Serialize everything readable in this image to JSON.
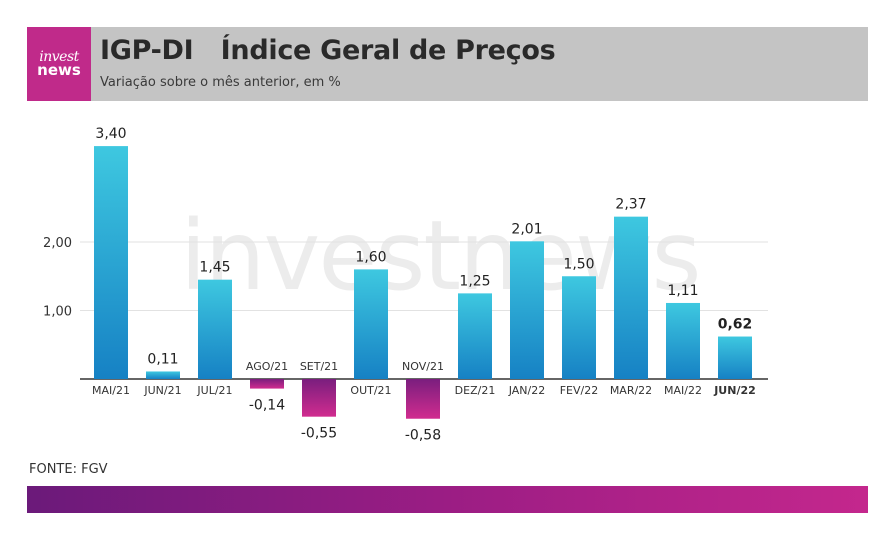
{
  "header": {
    "logo": {
      "line1": "invest",
      "line2": "news"
    },
    "title": "IGP-DI   Índice Geral de Preços",
    "subtitle": "Variação sobre o mês anterior, em %"
  },
  "watermark": "investnews",
  "source": "FONTE: FGV",
  "colors": {
    "header_bg": "#c4c4c4",
    "logo_bg": "#c02a8a",
    "positive_top": "#3ec8e0",
    "positive_bottom": "#1681c4",
    "negative_top": "#7a1e7e",
    "negative_bottom": "#d12c8f",
    "footer_start": "#6b1a7a",
    "footer_end": "#c4278d"
  },
  "chart_data": {
    "type": "bar",
    "categories": [
      "MAI/21",
      "JUN/21",
      "JUL/21",
      "AGO/21",
      "SET/21",
      "OUT/21",
      "NOV/21",
      "DEZ/21",
      "JAN/22",
      "FEV/22",
      "MAR/22",
      "MAI/22",
      "JUN/22"
    ],
    "values": [
      3.4,
      0.11,
      1.45,
      -0.14,
      -0.55,
      1.6,
      -0.58,
      1.25,
      2.01,
      1.5,
      2.37,
      1.11,
      0.62
    ],
    "value_labels": [
      "3,40",
      "0,11",
      "1,45",
      "-0,14",
      "-0,55",
      "1,60",
      "-0,58",
      "1,25",
      "2,01",
      "1,50",
      "2,37",
      "1,11",
      "0,62"
    ],
    "highlight_index": 12,
    "yticks": [
      1.0,
      2.0
    ],
    "ytick_labels": [
      "1,00",
      "2,00"
    ],
    "ylim": [
      -0.58,
      3.4
    ],
    "grid": true,
    "legend": "none"
  }
}
